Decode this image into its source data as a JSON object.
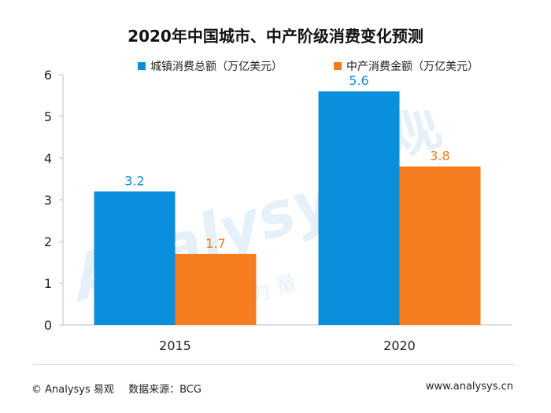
{
  "colors": {
    "blue": "#0a8fdc",
    "orange": "#f57c1f",
    "axis": "#bfbfbf",
    "watermark": "#cfe3f2"
  },
  "watermark": {
    "en": "Analysys",
    "cn": "观",
    "tagline": "数 成 长 的 力 量"
  },
  "footer": {
    "copyright": "© Analysys 易观",
    "source": "数据来源：BCG",
    "url": "www.analysys.cn"
  },
  "chart_data": {
    "type": "bar",
    "title": "2020年中国城市、中产阶级消费变化预测",
    "categories": [
      "2015",
      "2020"
    ],
    "series": [
      {
        "name": "城镇消费总额（万亿美元）",
        "values": [
          3.2,
          5.6
        ],
        "color": "#0a8fdc"
      },
      {
        "name": "中产消费金额（万亿美元）",
        "values": [
          1.7,
          3.8
        ],
        "color": "#f57c1f"
      }
    ],
    "ylim": [
      0,
      6
    ],
    "yticks": [
      0,
      1,
      2,
      3,
      4,
      5,
      6
    ],
    "grid": false,
    "legend": "top"
  }
}
